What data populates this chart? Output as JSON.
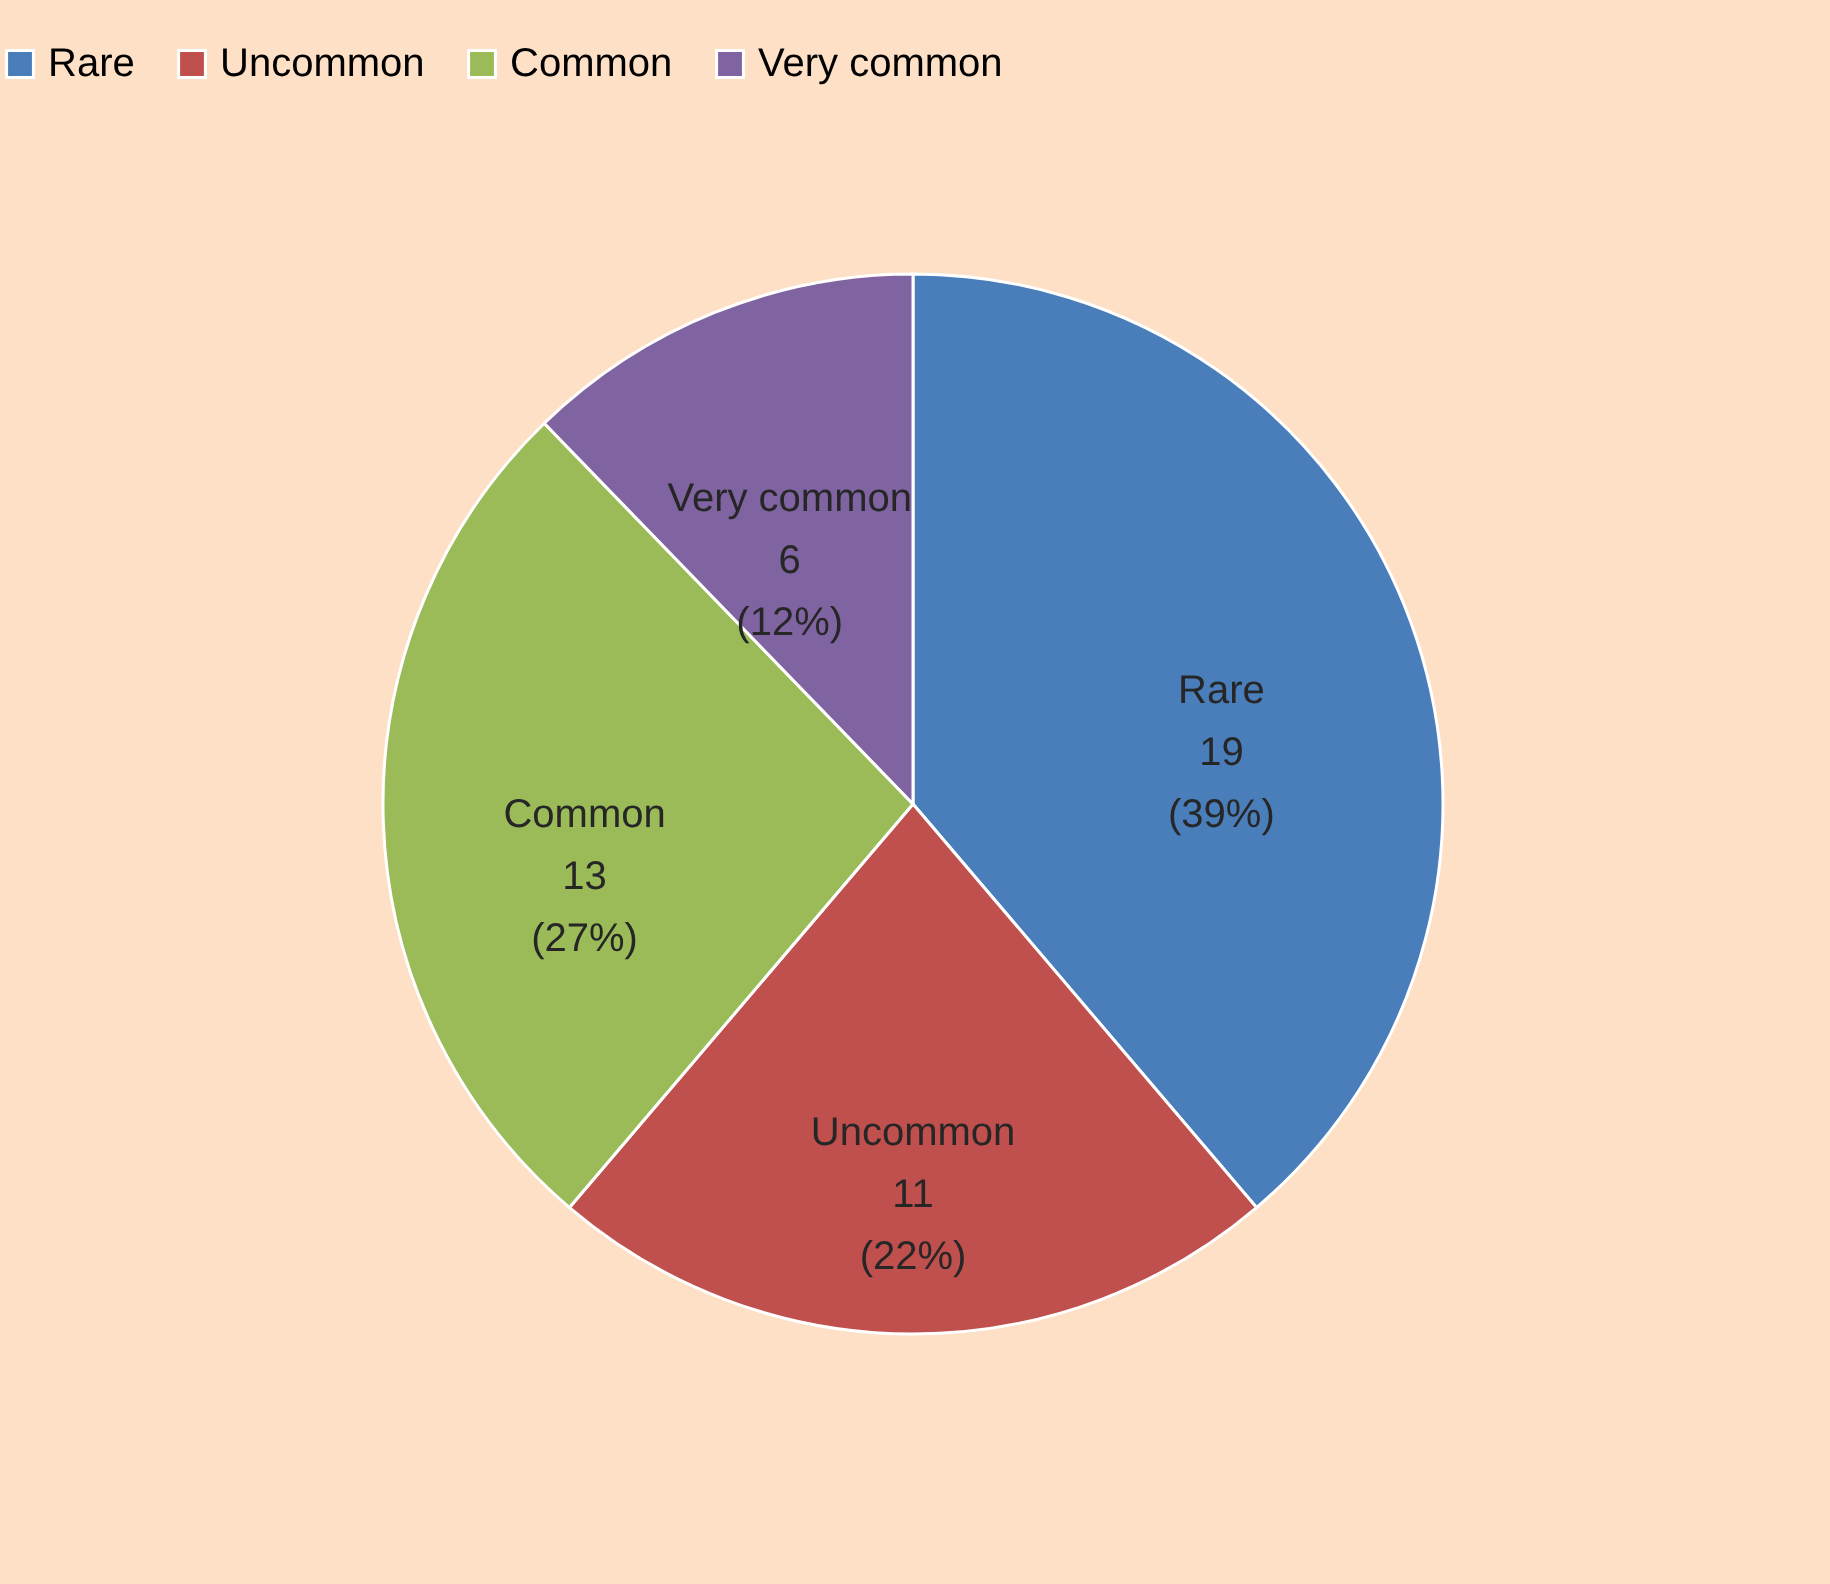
{
  "chart_data": {
    "type": "pie",
    "categories": [
      "Rare",
      "Uncommon",
      "Common",
      "Very common"
    ],
    "values": [
      19,
      11,
      13,
      6
    ],
    "colors": [
      "#4a7ebb",
      "#c0504d",
      "#9bbb59",
      "#8064a2"
    ],
    "value_labels": [
      "19 (39%)",
      "11 (22%)",
      "13 (27%)",
      "6 (12%)"
    ],
    "legend": "top"
  }
}
